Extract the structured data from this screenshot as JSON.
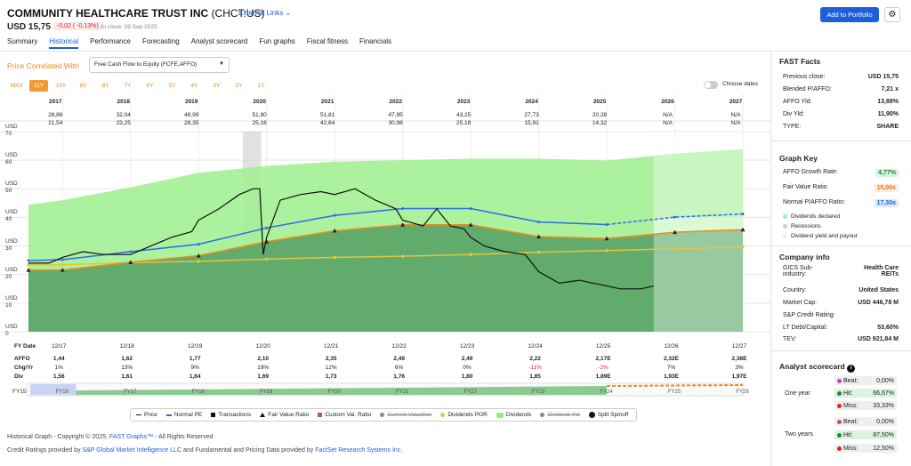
{
  "header": {
    "company": "COMMUNITY HEALTHCARE TRUST INC",
    "ticker": "(CHCT:US)",
    "external_links": "External Links",
    "price": "USD 15,75",
    "change": "-0,02 ( -0,13%)",
    "close_info": "At close: 09 Sep 2025",
    "add_button": "Add to Portfolio",
    "settings_icon": "gear-icon"
  },
  "tabs": [
    "Summary",
    "Historical",
    "Performance",
    "Forecasting",
    "Analyst scorecard",
    "Fun graphs",
    "Fiscal fitness",
    "Financials"
  ],
  "active_tab": "Historical",
  "controls": {
    "correlated_label": "Price Correlated With",
    "correlated_value": "Free Cash Flow to Equity (FCFE,AFFO)",
    "ranges": [
      "MAX",
      "11Y",
      "10Y",
      "9Y",
      "8Y",
      "7Y",
      "6Y",
      "5Y",
      "4Y",
      "3Y",
      "2Y",
      "1Y"
    ],
    "selected_range": "11Y",
    "choose_dates": "Choose dates"
  },
  "year_header": {
    "years": [
      "2017",
      "2018",
      "2019",
      "2020",
      "2021",
      "2022",
      "2023",
      "2024",
      "2025",
      "2026",
      "2027"
    ],
    "high": [
      "28,86",
      "32,04",
      "48,99",
      "51,90",
      "51,81",
      "47,95",
      "43,25",
      "27,73",
      "20,28",
      "N/A",
      "N/A"
    ],
    "low": [
      "21,54",
      "23,25",
      "28,35",
      "25,16",
      "42,64",
      "30,98",
      "25,18",
      "15,91",
      "14,32",
      "N/A",
      "N/A"
    ]
  },
  "y_axis": [
    "USD 70",
    "USD 60",
    "USD 50",
    "USD 40",
    "USD 30",
    "USD 20",
    "USD 10",
    "USD 0"
  ],
  "table": {
    "labels": [
      "FY Date",
      "AFFO",
      "Chg/Yr",
      "Div"
    ],
    "fy_dates": [
      "12/17",
      "12/18",
      "12/19",
      "12/20",
      "12/21",
      "12/22",
      "12/23",
      "12/24",
      "12/25",
      "12/26",
      "12/27"
    ],
    "affo": [
      "1,44",
      "1,62",
      "1,77",
      "2,10",
      "2,35",
      "2,49",
      "2,49",
      "2,22",
      "2,17E",
      "2,32E",
      "2,38E"
    ],
    "chg": [
      "1%",
      "13%",
      "9%",
      "19%",
      "12%",
      "6%",
      "0%",
      "-11%",
      "-2%",
      "7%",
      "3%"
    ],
    "div": [
      "1,56",
      "1,61",
      "1,64",
      "1,69",
      "1,73",
      "1,76",
      "1,80",
      "1,85",
      "1,89E",
      "1,93E",
      "1,97E"
    ]
  },
  "navigator": {
    "start_label": "FY15",
    "labels": [
      "FY16",
      "FY17",
      "FY18",
      "FY19",
      "FY20",
      "FY21",
      "FY22",
      "FY23",
      "FY24",
      "FY25",
      "FY26"
    ]
  },
  "legend": [
    "Price",
    "Normal PE",
    "Transactions",
    "Fair Value Ratio",
    "Custom Val. Ratio",
    "Current Valuation",
    "Dividends POR",
    "Dividends",
    "Dividend Yld",
    "Split Spinoff"
  ],
  "footer": {
    "line1_prefix": "Historical Graph - Copyright © 2025,",
    "line1_link": "FAST Graphs™",
    "line1_suffix": "- All Rights Reserved",
    "line2_prefix": "Credit Ratings provided by",
    "line2_link1": "S&P Global Market Intelligence LLC",
    "line2_mid": "and Fundamental and Pricing Data provided by",
    "line2_link2": "FactSet Research Systems Inc."
  },
  "fast_facts": {
    "title": "FAST Facts",
    "rows": [
      {
        "label": "Previous close:",
        "value": "USD 15,75"
      },
      {
        "label": "Blended P/AFFO:",
        "value": "7,21 x"
      },
      {
        "label": "AFFO Yld:",
        "value": "13,88%"
      },
      {
        "label": "Div Yld:",
        "value": "11,90%"
      },
      {
        "label": "TYPE:",
        "value": "SHARE"
      }
    ]
  },
  "graph_key": {
    "title": "Graph Key",
    "growth_label": "AFFO Growth Rate:",
    "growth_value": "4,77%",
    "fair_label": "Fair Value Ratio",
    "fair_value": "15,00x",
    "normal_label": "Normal P/AFFO Ratio:",
    "normal_value": "17,30x",
    "items": [
      "Dividends declared",
      "Recessions",
      "Dividend yield and payout"
    ]
  },
  "company_info": {
    "title": "Company info",
    "sub_industry_label": "GICS Sub-industry:",
    "sub_industry_value": "Health Care REITs",
    "rows": [
      {
        "label": "Country:",
        "value": "United States"
      },
      {
        "label": "Market Cap:",
        "value": "USD 446,78 M"
      },
      {
        "label": "S&P Credit Rating:",
        "value": ""
      },
      {
        "label": "LT Debt/Capital:",
        "value": "53,60%"
      },
      {
        "label": "TEV:",
        "value": "USD 921,84 M"
      }
    ]
  },
  "analyst_scorecard": {
    "title": "Analyst scorecard",
    "info_icon": "info-icon",
    "one_year": {
      "label": "One year",
      "beat": "0,00%",
      "hit": "66,67%",
      "miss": "33,33%"
    },
    "two_years": {
      "label": "Two years",
      "beat": "0,00%",
      "hit": "87,50%",
      "miss": "12,50%"
    },
    "beat_label": "Beat:",
    "hit_label": "Hit:",
    "miss_label": "Miss:"
  },
  "chart_data": {
    "type": "line",
    "ylim": [
      0,
      70
    ],
    "x_years": [
      2016.5,
      2017,
      2018,
      2019,
      2020,
      2021,
      2022,
      2023,
      2024,
      2025,
      2026,
      2027
    ],
    "series": [
      {
        "name": "Price",
        "x": [
          2016.5,
          2016.8,
          2017,
          2017.3,
          2017.6,
          2018,
          2018.3,
          2018.6,
          2018.9,
          2019,
          2019.3,
          2019.6,
          2019.8,
          2019.9,
          2019.95,
          2020,
          2020.2,
          2020.5,
          2020.8,
          2021,
          2021.3,
          2021.6,
          2021.9,
          2022,
          2022.3,
          2022.5,
          2022.7,
          2022.9,
          2023,
          2023.2,
          2023.5,
          2023.8,
          2024,
          2024.3,
          2024.6,
          2024.8,
          2025,
          2025.2,
          2025.5,
          2025.69
        ],
        "values": [
          24,
          24,
          26,
          28,
          27,
          27,
          30,
          33,
          35,
          39,
          43,
          48,
          50,
          50,
          27,
          33,
          46,
          48,
          49,
          48,
          50,
          46,
          43,
          39,
          37,
          43,
          37,
          36,
          33,
          30,
          28,
          27,
          21,
          17,
          18,
          17,
          16,
          15,
          15,
          16
        ]
      },
      {
        "name": "Normal PE",
        "x": [
          2016.5,
          2017,
          2018,
          2019,
          2020,
          2021,
          2022,
          2023,
          2024,
          2025,
          2026,
          2027
        ],
        "values": [
          24.9,
          25.2,
          28.0,
          30.6,
          36.3,
          40.7,
          43.1,
          43.1,
          38.4,
          37.5,
          40.1,
          41.2
        ]
      },
      {
        "name": "Fair Value Ratio",
        "x": [
          2016.5,
          2017,
          2018,
          2019,
          2020,
          2021,
          2022,
          2023,
          2024,
          2025,
          2026,
          2027
        ],
        "values": [
          21.6,
          21.6,
          24.3,
          26.6,
          31.5,
          35.3,
          37.4,
          37.4,
          33.3,
          32.6,
          34.8,
          35.7
        ]
      },
      {
        "name": "Dividends POR",
        "x": [
          2016.5,
          2017,
          2018,
          2019,
          2020,
          2021,
          2022,
          2023,
          2024,
          2025,
          2026,
          2027
        ],
        "values": [
          23.4,
          23.4,
          24.2,
          24.6,
          25.4,
          26.0,
          26.4,
          27.0,
          27.8,
          28.4,
          29.0,
          29.6
        ]
      },
      {
        "name": "Dividends",
        "x": [
          2016.5,
          2017,
          2018,
          2019,
          2020,
          2021,
          2022,
          2023,
          2024,
          2025,
          2026,
          2027
        ],
        "values": [
          44.4,
          46.0,
          50.5,
          55.6,
          58.0,
          59.5,
          60.0,
          60.5,
          60.5,
          59.9,
          62.3,
          63.9
        ]
      }
    ]
  }
}
